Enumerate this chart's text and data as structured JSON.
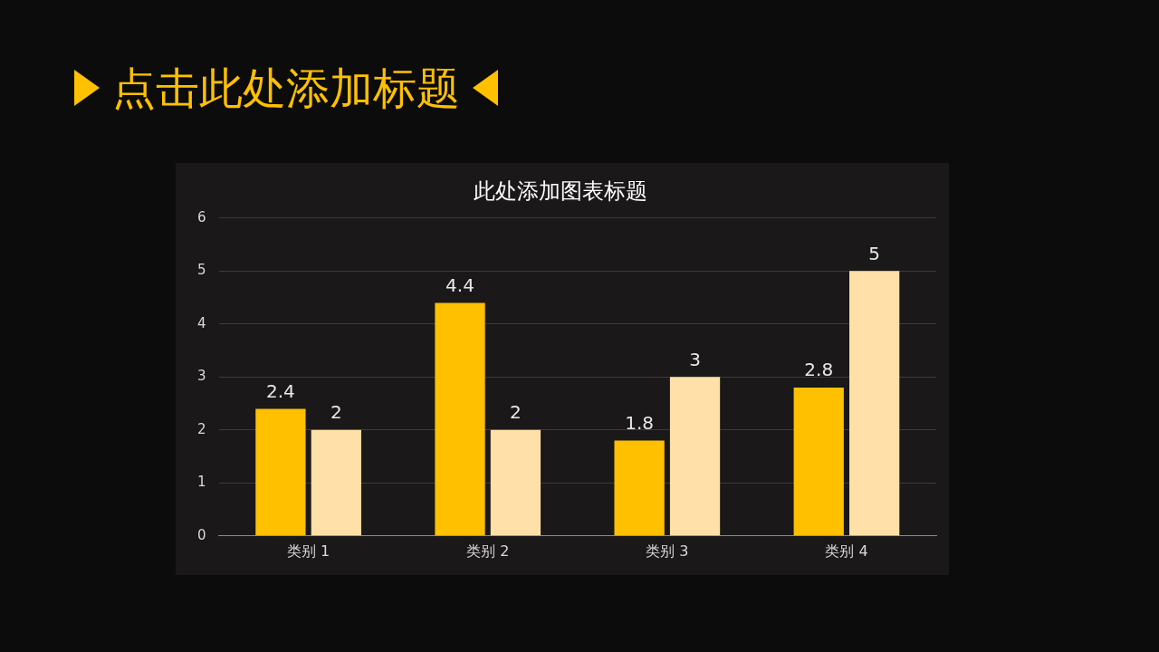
{
  "chart_data": {
    "type": "bar",
    "title": "点击此处添加标题",
    "subtitle": "此处添加图表标题",
    "categories": [
      "类别 1",
      "类别 2",
      "类别 3",
      "类别 4"
    ],
    "series": [
      {
        "color": "#ffc000",
        "values": [
          2.4,
          4.4,
          1.8,
          2.8
        ]
      },
      {
        "color": "#ffe0a8",
        "values": [
          2,
          2,
          3,
          5
        ]
      }
    ],
    "ylim": [
      0,
      6
    ],
    "yticks": [
      0,
      1,
      2,
      3,
      4,
      5,
      6
    ],
    "grid": "y",
    "legend": false,
    "data_labels": true
  }
}
